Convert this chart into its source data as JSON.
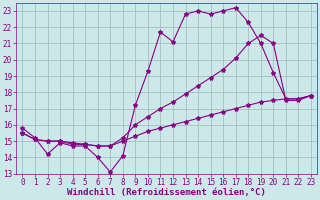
{
  "xlabel": "Windchill (Refroidissement éolien,°C)",
  "bg_color": "#cce8e8",
  "line_color": "#880088",
  "xlim": [
    -0.5,
    23.5
  ],
  "ylim": [
    13,
    23.5
  ],
  "xticks": [
    0,
    1,
    2,
    3,
    4,
    5,
    6,
    7,
    8,
    9,
    10,
    11,
    12,
    13,
    14,
    15,
    16,
    17,
    18,
    19,
    20,
    21,
    22,
    23
  ],
  "yticks": [
    13,
    14,
    15,
    16,
    17,
    18,
    19,
    20,
    21,
    22,
    23
  ],
  "line1_y": [
    15.8,
    15.2,
    14.2,
    14.9,
    14.7,
    14.7,
    14.0,
    13.1,
    14.1,
    17.2,
    19.3,
    21.7,
    21.1,
    22.8,
    23.0,
    22.8,
    23.0,
    23.2,
    22.3,
    21.0,
    19.2,
    17.6,
    17.6,
    17.8
  ],
  "line2_y": [
    15.5,
    15.1,
    15.0,
    15.0,
    14.8,
    14.8,
    14.7,
    14.7,
    15.2,
    16.0,
    16.5,
    17.0,
    17.4,
    17.9,
    18.4,
    18.9,
    19.4,
    20.1,
    21.0,
    21.5,
    21.0,
    17.5,
    17.5,
    17.8
  ],
  "line3_y": [
    15.5,
    15.1,
    15.0,
    15.0,
    14.9,
    14.8,
    14.7,
    14.7,
    15.0,
    15.3,
    15.6,
    15.8,
    16.0,
    16.2,
    16.4,
    16.6,
    16.8,
    17.0,
    17.2,
    17.4,
    17.5,
    17.6,
    17.6,
    17.8
  ],
  "grid_color": "#99bbbb",
  "marker": "*",
  "markersize": 3,
  "linewidth": 0.8,
  "xlabel_fontsize": 6.5,
  "tick_fontsize": 5.5
}
